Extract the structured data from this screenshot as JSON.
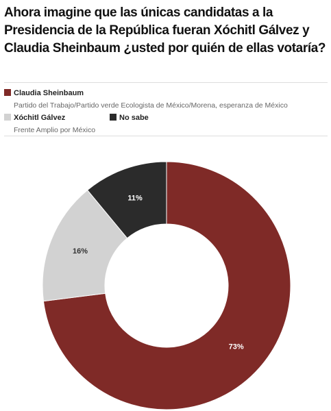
{
  "chart_data": {
    "type": "pie",
    "title": "Ahora imagine que las únicas candidatas a la Presidencia de la República fueran Xóchitl Gálvez y Claudia Sheinbaum ¿usted por quién de ellas votaría?",
    "categories": [
      "Claudia Sheinbaum",
      "Xóchitl Gálvez",
      "No sabe"
    ],
    "descriptions": [
      "Partido del Trabajo/Partido verde Ecologista de México/Morena, esperanza de México",
      "Frente Amplio por México",
      null
    ],
    "values": [
      73,
      16,
      11
    ],
    "value_labels": [
      "73%",
      "16%",
      "11%"
    ],
    "colors": [
      "#7f2a27",
      "#d2d2d2",
      "#2b2b2b"
    ],
    "label_colors": [
      "#ffffff",
      "#333333",
      "#ffffff"
    ],
    "donut": true
  }
}
